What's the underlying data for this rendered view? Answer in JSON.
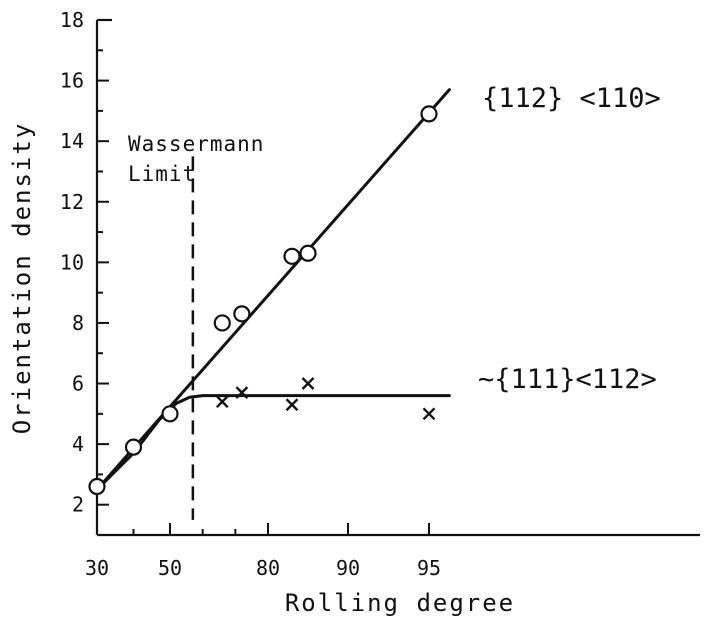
{
  "chart_data": {
    "type": "scatter",
    "title": "",
    "xlabel": "Rolling degree",
    "ylabel": "Orientation density",
    "x_tick_labels": [
      "30",
      "50",
      "80",
      "90",
      "95"
    ],
    "y_ticks": [
      2,
      4,
      6,
      8,
      10,
      12,
      14,
      16,
      18
    ],
    "ylim": [
      1,
      18
    ],
    "grid": false,
    "annotations": {
      "wassermann": [
        "Wassermann",
        "Limit"
      ],
      "family_112_110": "{112} <110>",
      "family_111_112": "~{111}<112>"
    },
    "series": [
      {
        "name": "{112} <110>",
        "marker": "circle",
        "points": [
          {
            "x": 30,
            "y": 2.6
          },
          {
            "x": 40,
            "y": 3.9
          },
          {
            "x": 50,
            "y": 5.0
          },
          {
            "x": 66,
            "y": 8.0
          },
          {
            "x": 72,
            "y": 8.3
          },
          {
            "x": 83,
            "y": 10.2
          },
          {
            "x": 85,
            "y": 10.3
          },
          {
            "x": 95,
            "y": 14.9
          }
        ]
      },
      {
        "name": "~{111}<112>",
        "marker": "cross",
        "points": [
          {
            "x": 66,
            "y": 5.4
          },
          {
            "x": 72,
            "y": 5.7
          },
          {
            "x": 83,
            "y": 5.3
          },
          {
            "x": 85,
            "y": 6.0
          },
          {
            "x": 95,
            "y": 5.0
          }
        ]
      }
    ],
    "fit_lines": {
      "linear_112": [
        [
          30,
          2.5
        ],
        [
          97,
          15.7
        ]
      ],
      "plateau_111": [
        [
          30,
          2.5
        ],
        [
          40,
          3.7
        ],
        [
          47,
          4.8
        ],
        [
          52,
          5.35
        ],
        [
          56,
          5.55
        ],
        [
          60,
          5.6
        ],
        [
          97,
          5.6
        ]
      ],
      "wassermann_limit_x": 57
    }
  }
}
